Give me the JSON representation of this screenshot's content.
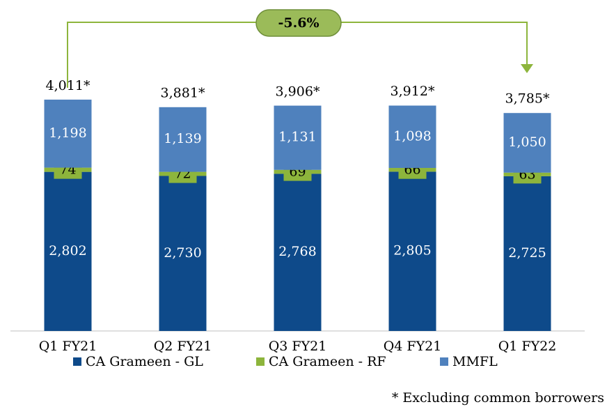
{
  "chart_data": {
    "type": "stacked_bar",
    "categories": [
      "Q1 FY21",
      "Q2 FY21",
      "Q3 FY21",
      "Q4 FY21",
      "Q1 FY22"
    ],
    "series": [
      {
        "name": "CA Grameen - GL",
        "color": "#0e4a8a",
        "values": [
          2802,
          2730,
          2768,
          2805,
          2725
        ],
        "value_labels": [
          "2,802",
          "2,730",
          "2,768",
          "2,805",
          "2,725"
        ]
      },
      {
        "name": "CA Grameen - RF",
        "color": "#8db53c",
        "values": [
          74,
          72,
          69,
          66,
          63
        ]
      },
      {
        "name": "MMFL",
        "color": "#4f81bd",
        "values": [
          1198,
          1139,
          1131,
          1098,
          1050
        ],
        "value_labels": [
          "1,198",
          "1,139",
          "1,131",
          "1,098",
          "1,050"
        ]
      }
    ],
    "totals": {
      "values": [
        4011,
        3881,
        3906,
        3912,
        3785
      ],
      "value_labels": [
        "4,011*",
        "3,881*",
        "3,906*",
        "3,912*",
        "3,785*"
      ]
    },
    "annotation": "-5.6%",
    "footnote": "* Excluding common borrowers",
    "ylim": [
      0,
      5000
    ]
  }
}
